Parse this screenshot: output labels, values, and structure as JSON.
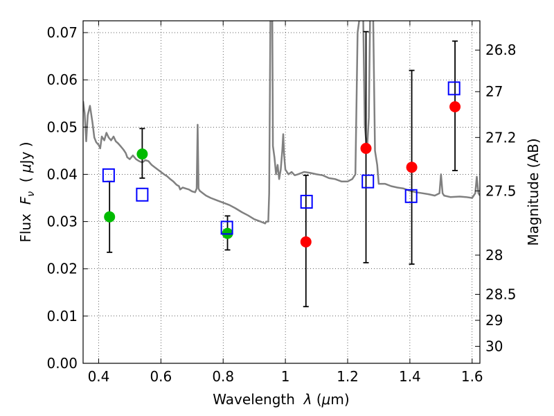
{
  "chart_data": {
    "type": "scatter",
    "xlabel": "Wavelength  λ (μm)",
    "ylabel": "Flux  F_ν  ( μJy )",
    "y2label": "Magnitude (AB)",
    "xlim": [
      0.35,
      1.625
    ],
    "ylim": [
      0.0,
      0.0725
    ],
    "grid": true,
    "x_ticks": [
      0.4,
      0.6,
      0.8,
      1.0,
      1.2,
      1.4,
      1.6
    ],
    "x_tick_labels": [
      "0.4",
      "0.6",
      "0.8",
      "1",
      "1.2",
      "1.4",
      "1.6"
    ],
    "y_ticks": [
      0.0,
      0.01,
      0.02,
      0.03,
      0.04,
      0.05,
      0.06,
      0.07
    ],
    "y_tick_labels": [
      "0.00",
      "0.01",
      "0.02",
      "0.03",
      "0.04",
      "0.05",
      "0.06",
      "0.07"
    ],
    "y2_ticks": [
      {
        "flux": 0.0663,
        "label": "26.8"
      },
      {
        "flux": 0.0575,
        "label": "27"
      },
      {
        "flux": 0.0478,
        "label": "27.2"
      },
      {
        "flux": 0.0365,
        "label": "27.5"
      },
      {
        "flux": 0.0229,
        "label": "28"
      },
      {
        "flux": 0.0146,
        "label": "28.5"
      },
      {
        "flux": 0.0091,
        "label": "29"
      },
      {
        "flux": 0.0036,
        "label": "30"
      }
    ],
    "series": [
      {
        "marker": "circle",
        "color": "#00bb00",
        "points": [
          {
            "x": 0.435,
            "y": 0.031,
            "err_low": 0.0235,
            "err_high": 0.0385
          },
          {
            "x": 0.54,
            "y": 0.0443,
            "err_low": 0.0392,
            "err_high": 0.0497
          },
          {
            "x": 0.814,
            "y": 0.0275,
            "err_low": 0.024,
            "err_high": 0.0312
          }
        ]
      },
      {
        "marker": "circle",
        "color": "#ff0000",
        "points": [
          {
            "x": 1.066,
            "y": 0.0257,
            "err_low": 0.012,
            "err_high": 0.0398
          },
          {
            "x": 1.259,
            "y": 0.0455,
            "err_low": 0.0213,
            "err_high": 0.0702
          },
          {
            "x": 1.406,
            "y": 0.0415,
            "err_low": 0.021,
            "err_high": 0.062
          },
          {
            "x": 1.545,
            "y": 0.0543,
            "err_low": 0.0408,
            "err_high": 0.0682
          }
        ]
      },
      {
        "marker": "square-open",
        "color": "#0000ff",
        "points": [
          {
            "x": 0.432,
            "y": 0.0398
          },
          {
            "x": 0.54,
            "y": 0.0357
          },
          {
            "x": 0.812,
            "y": 0.0287
          },
          {
            "x": 1.068,
            "y": 0.0342
          },
          {
            "x": 1.265,
            "y": 0.0385
          },
          {
            "x": 1.404,
            "y": 0.0354
          },
          {
            "x": 1.542,
            "y": 0.0582
          }
        ]
      },
      {
        "marker": "line",
        "color": "#808080",
        "points": [
          [
            0.35,
            0.0555
          ],
          [
            0.355,
            0.053
          ],
          [
            0.36,
            0.047
          ],
          [
            0.365,
            0.0525
          ],
          [
            0.372,
            0.0545
          ],
          [
            0.38,
            0.051
          ],
          [
            0.386,
            0.0478
          ],
          [
            0.392,
            0.0468
          ],
          [
            0.4,
            0.0462
          ],
          [
            0.405,
            0.0455
          ],
          [
            0.41,
            0.048
          ],
          [
            0.418,
            0.0472
          ],
          [
            0.425,
            0.0488
          ],
          [
            0.432,
            0.0478
          ],
          [
            0.44,
            0.0472
          ],
          [
            0.448,
            0.048
          ],
          [
            0.455,
            0.047
          ],
          [
            0.462,
            0.0466
          ],
          [
            0.47,
            0.046
          ],
          [
            0.48,
            0.0452
          ],
          [
            0.487,
            0.0445
          ],
          [
            0.492,
            0.0436
          ],
          [
            0.5,
            0.0432
          ],
          [
            0.51,
            0.044
          ],
          [
            0.52,
            0.0432
          ],
          [
            0.53,
            0.0428
          ],
          [
            0.54,
            0.0425
          ],
          [
            0.55,
            0.043
          ],
          [
            0.56,
            0.0428
          ],
          [
            0.57,
            0.042
          ],
          [
            0.58,
            0.0415
          ],
          [
            0.59,
            0.041
          ],
          [
            0.6,
            0.0405
          ],
          [
            0.61,
            0.04
          ],
          [
            0.62,
            0.0396
          ],
          [
            0.63,
            0.039
          ],
          [
            0.64,
            0.0385
          ],
          [
            0.65,
            0.0378
          ],
          [
            0.658,
            0.0375
          ],
          [
            0.662,
            0.0368
          ],
          [
            0.67,
            0.0372
          ],
          [
            0.68,
            0.037
          ],
          [
            0.69,
            0.0368
          ],
          [
            0.7,
            0.0364
          ],
          [
            0.71,
            0.0362
          ],
          [
            0.715,
            0.037
          ],
          [
            0.718,
            0.0505
          ],
          [
            0.721,
            0.037
          ],
          [
            0.725,
            0.0365
          ],
          [
            0.735,
            0.036
          ],
          [
            0.745,
            0.0355
          ],
          [
            0.76,
            0.035
          ],
          [
            0.78,
            0.0345
          ],
          [
            0.8,
            0.034
          ],
          [
            0.82,
            0.0335
          ],
          [
            0.84,
            0.0328
          ],
          [
            0.86,
            0.032
          ],
          [
            0.88,
            0.0313
          ],
          [
            0.9,
            0.0305
          ],
          [
            0.92,
            0.03
          ],
          [
            0.935,
            0.0296
          ],
          [
            0.938,
            0.03
          ],
          [
            0.945,
            0.03
          ],
          [
            0.948,
            0.036
          ],
          [
            0.952,
            0.073
          ],
          [
            0.958,
            0.073
          ],
          [
            0.96,
            0.046
          ],
          [
            0.965,
            0.0435
          ],
          [
            0.97,
            0.04
          ],
          [
            0.975,
            0.042
          ],
          [
            0.98,
            0.039
          ],
          [
            0.985,
            0.041
          ],
          [
            0.99,
            0.045
          ],
          [
            0.993,
            0.0485
          ],
          [
            0.996,
            0.044
          ],
          [
            1.0,
            0.041
          ],
          [
            1.01,
            0.04
          ],
          [
            1.02,
            0.0405
          ],
          [
            1.03,
            0.0398
          ],
          [
            1.04,
            0.04
          ],
          [
            1.06,
            0.0405
          ],
          [
            1.08,
            0.0403
          ],
          [
            1.1,
            0.04
          ],
          [
            1.12,
            0.0398
          ],
          [
            1.14,
            0.0392
          ],
          [
            1.16,
            0.039
          ],
          [
            1.18,
            0.0385
          ],
          [
            1.2,
            0.0385
          ],
          [
            1.215,
            0.039
          ],
          [
            1.225,
            0.04
          ],
          [
            1.232,
            0.07
          ],
          [
            1.238,
            0.073
          ],
          [
            1.25,
            0.073
          ],
          [
            1.255,
            0.0505
          ],
          [
            1.262,
            0.045
          ],
          [
            1.268,
            0.052
          ],
          [
            1.272,
            0.073
          ],
          [
            1.282,
            0.073
          ],
          [
            1.288,
            0.045
          ],
          [
            1.295,
            0.042
          ],
          [
            1.3,
            0.038
          ],
          [
            1.32,
            0.038
          ],
          [
            1.34,
            0.0375
          ],
          [
            1.36,
            0.0372
          ],
          [
            1.38,
            0.037
          ],
          [
            1.4,
            0.0365
          ],
          [
            1.42,
            0.0362
          ],
          [
            1.44,
            0.036
          ],
          [
            1.46,
            0.0358
          ],
          [
            1.48,
            0.0355
          ],
          [
            1.495,
            0.036
          ],
          [
            1.5,
            0.04
          ],
          [
            1.505,
            0.036
          ],
          [
            1.51,
            0.0355
          ],
          [
            1.53,
            0.0352
          ],
          [
            1.56,
            0.0353
          ],
          [
            1.58,
            0.0352
          ],
          [
            1.6,
            0.035
          ],
          [
            1.61,
            0.036
          ],
          [
            1.615,
            0.0395
          ],
          [
            1.62,
            0.036
          ],
          [
            1.625,
            0.0355
          ]
        ]
      }
    ]
  }
}
